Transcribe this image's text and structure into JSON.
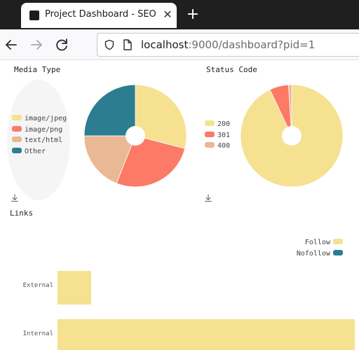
{
  "browser": {
    "tab_title": "Project Dashboard - SEOn",
    "url_host": "localhost",
    "url_rest": ":9000/dashboard?pid=1"
  },
  "media_type": {
    "title": "Media Type",
    "chart_data": {
      "type": "pie",
      "title": "Media Type",
      "categories": [
        "image/jpeg",
        "image/png",
        "text/html",
        "Other"
      ],
      "values": [
        29,
        27,
        19,
        25
      ],
      "colors": [
        "#f5e190",
        "#fc7a66",
        "#e9b894",
        "#2d7d91"
      ],
      "legend_position": "left"
    }
  },
  "status_code": {
    "title": "Status Code",
    "chart_data": {
      "type": "pie",
      "title": "Status Code",
      "categories": [
        "200",
        "301",
        "400"
      ],
      "values": [
        93,
        6,
        1
      ],
      "colors": [
        "#f5e190",
        "#fc7a66",
        "#e9b894"
      ],
      "legend_position": "left"
    }
  },
  "links": {
    "title": "Links",
    "chart_data": {
      "type": "bar",
      "orientation": "horizontal",
      "title": "Links",
      "categories": [
        "External",
        "Internal"
      ],
      "series": [
        {
          "name": "Follow",
          "values": [
            5,
            44
          ]
        },
        {
          "name": "Nofollow",
          "values": [
            0,
            0
          ]
        }
      ],
      "colors": [
        "#f5e190",
        "#2d7d91"
      ],
      "xlim": [
        0,
        44
      ],
      "legend_position": "top-right"
    }
  }
}
